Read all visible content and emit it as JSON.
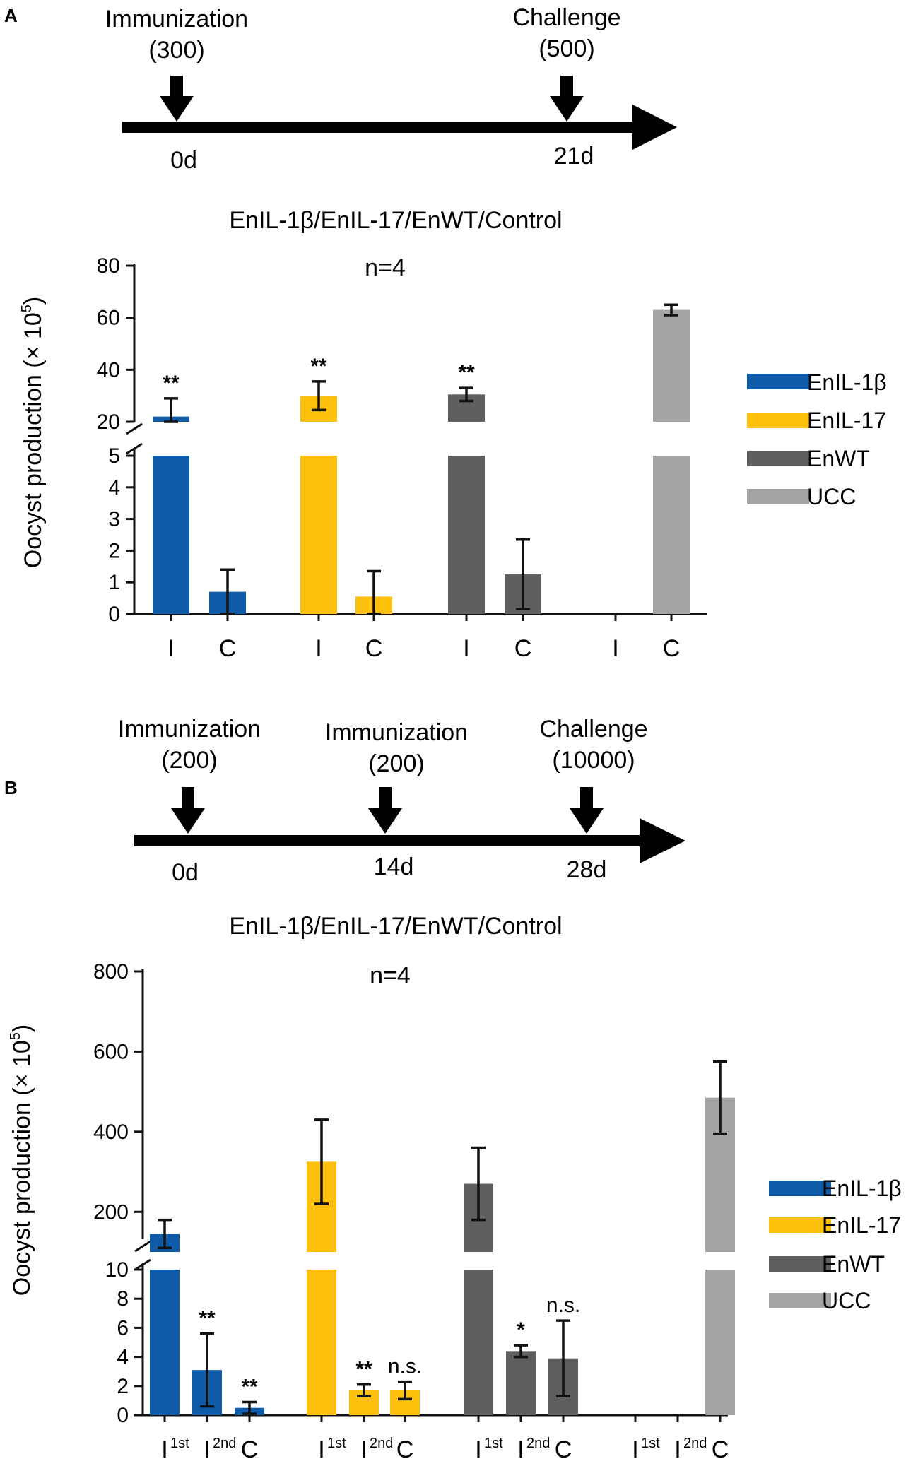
{
  "colors": {
    "EnIL-1β": "#0f5ba7",
    "EnIL-17": "#fdc10d",
    "EnWT": "#5f5f5f",
    "UCC": "#a4a4a6"
  },
  "panelA": {
    "letter": "A",
    "timeline": [
      {
        "event": "Immunization",
        "dose": "(300)",
        "day": "0d"
      },
      {
        "event": "Challenge",
        "dose": "(500)",
        "day": "21d"
      }
    ],
    "title": "EnIL-1β/EnIL-17/EnWT/Control",
    "n_label": "n=4",
    "ylabel": "Oocyst production (× 10",
    "ylabel_sup": "5",
    "ylabel_close": ")"
  },
  "panelB": {
    "letter": "B",
    "timeline": [
      {
        "event": "Immunization",
        "dose": "(200)",
        "day": "0d"
      },
      {
        "event": "Immunization",
        "dose": "(200)",
        "day": "14d"
      },
      {
        "event": "Challenge",
        "dose": "(10000)",
        "day": "28d"
      }
    ],
    "title": "EnIL-1β/EnIL-17/EnWT/Control",
    "n_label": "n=4",
    "ylabel": "Oocyst production (× 10",
    "ylabel_sup": "5",
    "ylabel_close": ")"
  },
  "chart_data": [
    {
      "type": "bar",
      "title": "EnIL-1β/EnIL-17/EnWT/Control",
      "subtitle": "n=4",
      "ylabel": "Oocyst production (× 10^5)",
      "broken_axis": {
        "lower": [
          0,
          5
        ],
        "upper": [
          20,
          80
        ]
      },
      "lower_ticks": [
        "0",
        "1",
        "2",
        "3",
        "4",
        "5"
      ],
      "upper_ticks": [
        "20",
        "40",
        "60",
        "80"
      ],
      "legend": [
        "EnIL-1β",
        "EnIL-17",
        "EnWT",
        "UCC"
      ],
      "legend_position": "right",
      "groups": [
        {
          "name": "EnIL-1β",
          "bars": [
            {
              "label": "I",
              "value": 22,
              "error": 7,
              "sig": "**"
            },
            {
              "label": "C",
              "value": 0.7,
              "error": 0.7,
              "sig": ""
            }
          ]
        },
        {
          "name": "EnIL-17",
          "bars": [
            {
              "label": "I",
              "value": 30,
              "error": 5.5,
              "sig": "**"
            },
            {
              "label": "C",
              "value": 0.55,
              "error": 0.8,
              "sig": ""
            }
          ]
        },
        {
          "name": "EnWT",
          "bars": [
            {
              "label": "I",
              "value": 30.5,
              "error": 2.5,
              "sig": "**"
            },
            {
              "label": "C",
              "value": 1.25,
              "error": 1.1,
              "sig": ""
            }
          ]
        },
        {
          "name": "UCC",
          "bars": [
            {
              "label": "I",
              "value": null,
              "error": null,
              "sig": ""
            },
            {
              "label": "C",
              "value": 63,
              "error": 2,
              "sig": ""
            }
          ]
        }
      ]
    },
    {
      "type": "bar",
      "title": "EnIL-1β/EnIL-17/EnWT/Control",
      "subtitle": "n=4",
      "ylabel": "Oocyst production (× 10^5)",
      "broken_axis": {
        "lower": [
          0,
          10
        ],
        "upper": [
          100,
          800
        ]
      },
      "lower_ticks": [
        "0",
        "2",
        "4",
        "6",
        "8",
        "10"
      ],
      "upper_ticks": [
        "200",
        "400",
        "600",
        "800"
      ],
      "legend": [
        "EnIL-1β",
        "EnIL-17",
        "EnWT",
        "UCC"
      ],
      "legend_position": "right",
      "groups": [
        {
          "name": "EnIL-1β",
          "bars": [
            {
              "label": "I",
              "sup": "1st",
              "value": 145,
              "error": 35,
              "sig": ""
            },
            {
              "label": "I",
              "sup": "2nd",
              "value": 3.1,
              "error": 2.5,
              "sig": "**"
            },
            {
              "label": "C",
              "sup": "",
              "value": 0.5,
              "error": 0.4,
              "sig": "**"
            }
          ]
        },
        {
          "name": "EnIL-17",
          "bars": [
            {
              "label": "I",
              "sup": "1st",
              "value": 325,
              "error": 105,
              "sig": ""
            },
            {
              "label": "I",
              "sup": "2nd",
              "value": 1.7,
              "error": 0.4,
              "sig": "**"
            },
            {
              "label": "C",
              "sup": "",
              "value": 1.7,
              "error": 0.6,
              "sig": "n.s."
            }
          ]
        },
        {
          "name": "EnWT",
          "bars": [
            {
              "label": "I",
              "sup": "1st",
              "value": 270,
              "error": 90,
              "sig": ""
            },
            {
              "label": "I",
              "sup": "2nd",
              "value": 4.4,
              "error": 0.4,
              "sig": "*"
            },
            {
              "label": "C",
              "sup": "",
              "value": 3.9,
              "error": 2.6,
              "sig": "n.s."
            }
          ]
        },
        {
          "name": "UCC",
          "bars": [
            {
              "label": "I",
              "sup": "1st",
              "value": null,
              "error": null,
              "sig": ""
            },
            {
              "label": "I",
              "sup": "2nd",
              "value": null,
              "error": null,
              "sig": ""
            },
            {
              "label": "C",
              "sup": "",
              "value": 485,
              "error": 90,
              "sig": ""
            }
          ]
        }
      ]
    }
  ]
}
